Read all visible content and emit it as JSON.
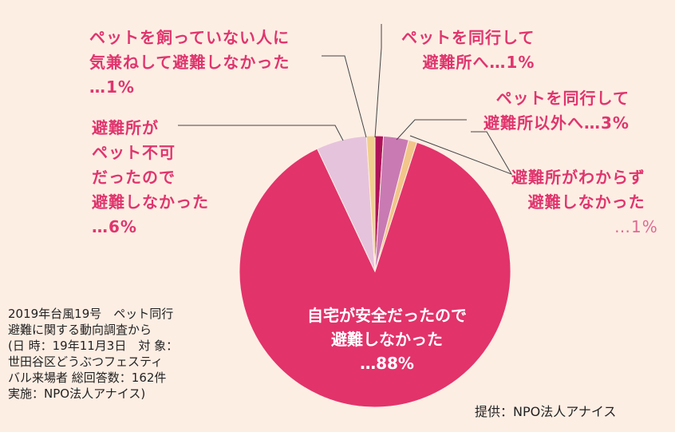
{
  "chart_data": {
    "type": "pie",
    "slices": [
      {
        "label": "ペットを同行して\n避難所へ…1%",
        "value": 1,
        "color": "#b0125a"
      },
      {
        "label": "ペットを同行して\n避難所以外へ…3%",
        "value": 3,
        "color": "#c97ab3"
      },
      {
        "label": "避難所がわからず\n避難しなかった\n…1%",
        "value": 1,
        "color": "#f2c58a"
      },
      {
        "label": "自宅が安全だったので\n避難しなかった\n…88%",
        "value": 88,
        "color": "#e2336b"
      },
      {
        "label": "避難所が\nペット不可\nだったので\n避難しなかった\n…6%",
        "value": 6,
        "color": "#e6c3dc"
      },
      {
        "label": "ペットを飼っていない人に\n気兼ねして避難しなかった\n…1%",
        "value": 1,
        "color": "#f0cf8c"
      }
    ]
  },
  "labels": {
    "top_right": "ペットを同行して\n避難所へ…1%",
    "right_1": "ペットを同行して\n避難所以外へ…3%",
    "right_2": "避難所がわからず\n避難しなかった",
    "right_2_pct": "…1%",
    "top_left": "ペットを飼っていない人に\n気兼ねして避難しなかった\n…1%",
    "left": "避難所が\nペット不可\nだったので\n避難しなかった\n…6%",
    "inner": "自宅が安全だったので\n避難しなかった\n…88%"
  },
  "source_note": "2019年台風19号　ペット同行\n避難に関する動向調査から\n(日 時：19年11月3日　対 象：\n世田谷区どうぶつフェスティ\nバル来場者 総回答数：162件\n実施：NPO法人アナイス)",
  "credit": "提供：NPO法人アナイス",
  "colors": {
    "background": "#fdeee4",
    "label_text": "#e0356e",
    "leader_line": "#444444"
  }
}
